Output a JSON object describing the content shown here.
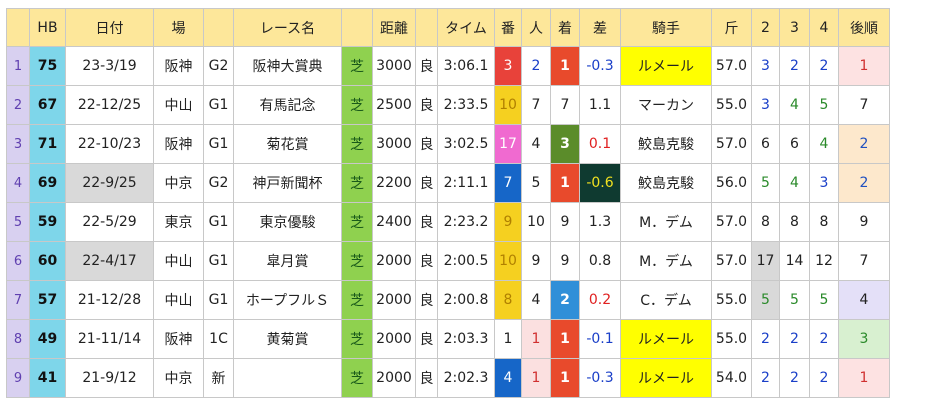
{
  "headers": [
    "",
    "HB",
    "日付",
    "場",
    "",
    "レース名",
    "",
    "距離",
    "",
    "タイム",
    "番",
    "人",
    "着",
    "差",
    "騎手",
    "斤",
    "2",
    "3",
    "4",
    "後順"
  ],
  "rows": [
    {
      "idx": "1",
      "hb": "75",
      "date": "23-3/19",
      "track": "阪神",
      "grade": "G2",
      "name": "阪神大賞典",
      "surface": "芝",
      "dist": "3000",
      "cond": "良",
      "time": "3:06.1",
      "num": "3",
      "pop": "2",
      "fin": "1",
      "diff": "-0.3",
      "jockey": "ルメール",
      "kin": "57.0",
      "c2": "3",
      "c3": "2",
      "c4": "2",
      "late": "1"
    },
    {
      "idx": "2",
      "hb": "67",
      "date": "22-12/25",
      "track": "中山",
      "grade": "G1",
      "name": "有馬記念",
      "surface": "芝",
      "dist": "2500",
      "cond": "良",
      "time": "2:33.5",
      "num": "10",
      "pop": "7",
      "fin": "7",
      "diff": "1.1",
      "jockey": "マーカン",
      "kin": "55.0",
      "c2": "3",
      "c3": "4",
      "c4": "5",
      "late": "7"
    },
    {
      "idx": "3",
      "hb": "71",
      "date": "22-10/23",
      "track": "阪神",
      "grade": "G1",
      "name": "菊花賞",
      "surface": "芝",
      "dist": "3000",
      "cond": "良",
      "time": "3:02.5",
      "num": "17",
      "pop": "4",
      "fin": "3",
      "diff": "0.1",
      "jockey": "鮫島克駿",
      "kin": "57.0",
      "c2": "6",
      "c3": "6",
      "c4": "4",
      "late": "2"
    },
    {
      "idx": "4",
      "hb": "69",
      "date": "22-9/25",
      "track": "中京",
      "grade": "G2",
      "name": "神戸新聞杯",
      "surface": "芝",
      "dist": "2200",
      "cond": "良",
      "time": "2:11.1",
      "num": "7",
      "pop": "5",
      "fin": "1",
      "diff": "-0.6",
      "jockey": "鮫島克駿",
      "kin": "56.0",
      "c2": "5",
      "c3": "4",
      "c4": "3",
      "late": "2"
    },
    {
      "idx": "5",
      "hb": "59",
      "date": "22-5/29",
      "track": "東京",
      "grade": "G1",
      "name": "東京優駿",
      "surface": "芝",
      "dist": "2400",
      "cond": "良",
      "time": "2:23.2",
      "num": "9",
      "pop": "10",
      "fin": "9",
      "diff": "1.3",
      "jockey": "M．デム",
      "kin": "57.0",
      "c2": "8",
      "c3": "8",
      "c4": "8",
      "late": "9"
    },
    {
      "idx": "6",
      "hb": "60",
      "date": "22-4/17",
      "track": "中山",
      "grade": "G1",
      "name": "皐月賞",
      "surface": "芝",
      "dist": "2000",
      "cond": "良",
      "time": "2:00.5",
      "num": "10",
      "pop": "9",
      "fin": "9",
      "diff": "0.8",
      "jockey": "M．デム",
      "kin": "57.0",
      "c2": "17",
      "c3": "14",
      "c4": "12",
      "late": "7"
    },
    {
      "idx": "7",
      "hb": "57",
      "date": "21-12/28",
      "track": "中山",
      "grade": "G1",
      "name": "ホープフルＳ",
      "surface": "芝",
      "dist": "2000",
      "cond": "良",
      "time": "2:00.8",
      "num": "8",
      "pop": "4",
      "fin": "2",
      "diff": "0.2",
      "jockey": "C．デム",
      "kin": "55.0",
      "c2": "5",
      "c3": "5",
      "c4": "5",
      "late": "4"
    },
    {
      "idx": "8",
      "hb": "49",
      "date": "21-11/14",
      "track": "阪神",
      "grade": "1C",
      "name": "黄菊賞",
      "surface": "芝",
      "dist": "2000",
      "cond": "良",
      "time": "2:03.3",
      "num": "1",
      "pop": "1",
      "fin": "1",
      "diff": "-0.1",
      "jockey": "ルメール",
      "kin": "55.0",
      "c2": "2",
      "c3": "2",
      "c4": "2",
      "late": "3"
    },
    {
      "idx": "9",
      "hb": "41",
      "date": "21-9/12",
      "track": "中京",
      "grade": "新",
      "name": "",
      "surface": "芝",
      "dist": "2000",
      "cond": "良",
      "time": "2:02.3",
      "num": "4",
      "pop": "1",
      "fin": "1",
      "diff": "-0.3",
      "jockey": "ルメール",
      "kin": "54.0",
      "c2": "2",
      "c3": "2",
      "c4": "2",
      "late": "1"
    }
  ],
  "colors": {
    "header": "#fde79a",
    "hb": "#7ed6ea",
    "turf": "#8fd14f",
    "jockey_highlight": "#ffff00"
  }
}
